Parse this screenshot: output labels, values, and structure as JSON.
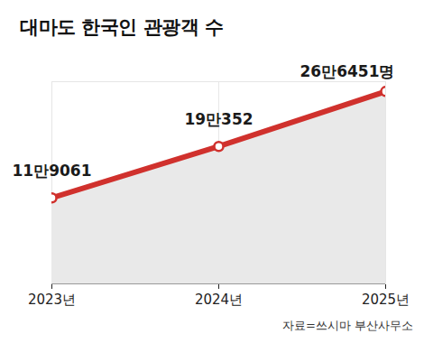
{
  "chart_data": {
    "type": "line",
    "title": "대마도 한국인 관광객 수",
    "source": "자료=쓰시마 부산사무소",
    "categories": [
      "2023년",
      "2024년",
      "2025년"
    ],
    "values": [
      119061,
      190352,
      266451
    ],
    "value_labels": [
      "11만9061",
      "19만352",
      "26만6451명"
    ],
    "color": "#d0312d",
    "marker": "circle",
    "line_style": "solid",
    "data_labels": true,
    "tick_labels": "x",
    "grid": true,
    "ylim": [
      0,
      280000
    ],
    "yticks": []
  }
}
